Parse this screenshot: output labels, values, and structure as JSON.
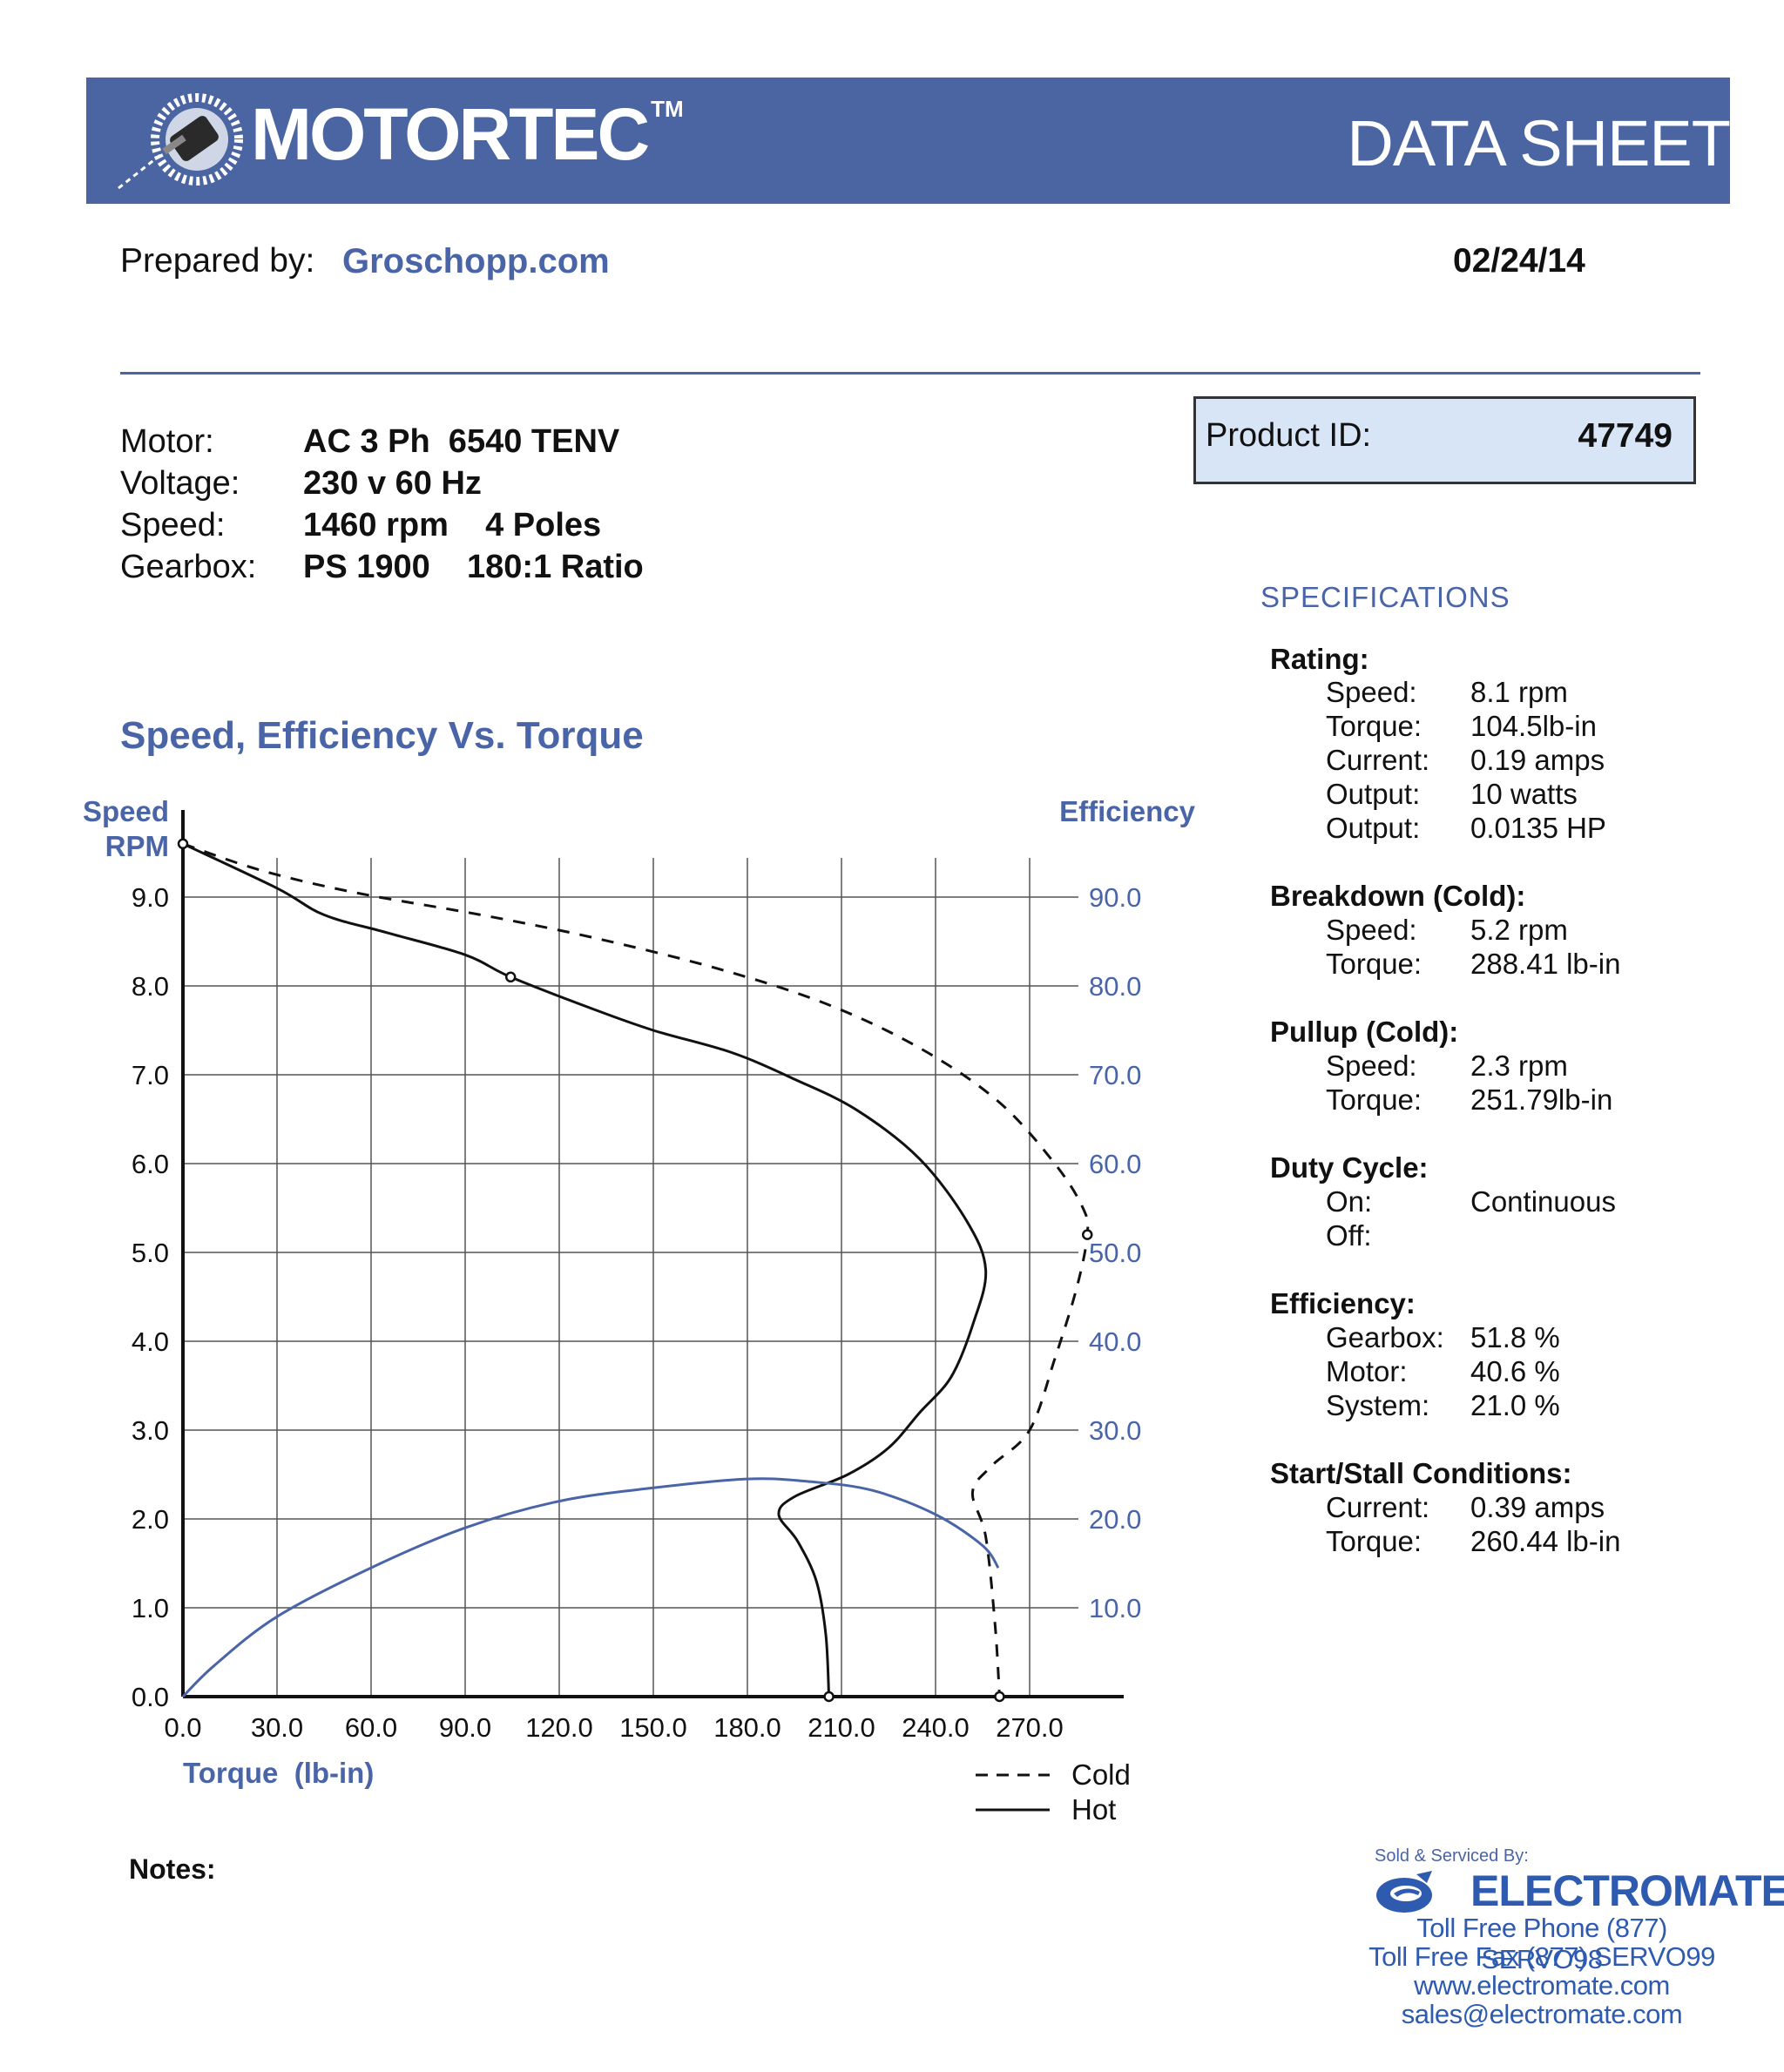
{
  "header": {
    "brand": "MOTORTEC",
    "trademark": "TM",
    "title": "DATA SHEET",
    "brand_color": "#4b65a3"
  },
  "prepared": {
    "label": "Prepared by:",
    "name": "Groschopp.com",
    "date": "02/24/14"
  },
  "motor": [
    {
      "label": "Motor:",
      "value": "AC 3 Ph  6540 TENV"
    },
    {
      "label": "Voltage:",
      "value": "230 v 60 Hz"
    },
    {
      "label": "Speed:",
      "value": "1460 rpm    4 Poles"
    },
    {
      "label": "Gearbox:",
      "value": "PS 1900    180:1 Ratio"
    }
  ],
  "product": {
    "label": "Product ID:",
    "value": "47749"
  },
  "specs": {
    "title": "SPECIFICATIONS",
    "groups": [
      {
        "heading": "Rating:",
        "rows": [
          {
            "k": "Speed:",
            "v": "8.1 rpm"
          },
          {
            "k": "Torque:",
            "v": "104.5lb-in"
          },
          {
            "k": "Current:",
            "v": "0.19 amps"
          },
          {
            "k": "Output:",
            "v": "10 watts"
          },
          {
            "k": "Output:",
            "v": "0.0135 HP"
          }
        ]
      },
      {
        "heading": "Breakdown (Cold):",
        "rows": [
          {
            "k": "Speed:",
            "v": "5.2 rpm"
          },
          {
            "k": "Torque:",
            "v": "288.41 lb-in"
          }
        ]
      },
      {
        "heading": "Pullup (Cold):",
        "rows": [
          {
            "k": "Speed:",
            "v": "2.3 rpm"
          },
          {
            "k": "Torque:",
            "v": "251.79lb-in"
          }
        ]
      },
      {
        "heading": "Duty Cycle:",
        "rows": [
          {
            "k": "On:",
            "v": "Continuous"
          },
          {
            "k": "Off:",
            "v": ""
          }
        ]
      },
      {
        "heading": "Efficiency:",
        "rows": [
          {
            "k": "Gearbox:",
            "v": "51.8 %"
          },
          {
            "k": "Motor:",
            "v": "40.6 %"
          },
          {
            "k": "System:",
            "v": "21.0 %"
          }
        ]
      },
      {
        "heading": "Start/Stall Conditions:",
        "rows": [
          {
            "k": "Current:",
            "v": "0.39 amps"
          },
          {
            "k": "Torque:",
            "v": "260.44 lb-in"
          }
        ]
      }
    ]
  },
  "chart_title": "Speed, Efficiency Vs. Torque",
  "chart_data": {
    "type": "line",
    "title": "Speed, Efficiency Vs. Torque",
    "xlabel": "Torque  (lb-in)",
    "ylabel": "Speed RPM",
    "y2label": "Efficiency",
    "xlim": [
      0,
      300
    ],
    "ylim": [
      0,
      9.6
    ],
    "y2lim": [
      0,
      96
    ],
    "x_ticks": [
      "0.0",
      "30.0",
      "60.0",
      "90.0",
      "120.0",
      "150.0",
      "180.0",
      "210.0",
      "240.0",
      "270.0"
    ],
    "y_ticks": [
      "0.0",
      "1.0",
      "2.0",
      "3.0",
      "4.0",
      "5.0",
      "6.0",
      "7.0",
      "8.0",
      "9.0"
    ],
    "y2_ticks": [
      "10.0",
      "20.0",
      "30.0",
      "40.0",
      "50.0",
      "60.0",
      "70.0",
      "80.0",
      "90.0"
    ],
    "series": [
      {
        "name": "Cold",
        "style": "dashed",
        "color": "#111111",
        "axis": "speed",
        "points": [
          [
            0,
            9.6
          ],
          [
            25,
            9.3
          ],
          [
            55,
            9.05
          ],
          [
            95,
            8.8
          ],
          [
            130,
            8.55
          ],
          [
            170,
            8.2
          ],
          [
            205,
            7.8
          ],
          [
            235,
            7.3
          ],
          [
            260,
            6.7
          ],
          [
            278,
            6.0
          ],
          [
            287,
            5.5
          ],
          [
            288.4,
            5.2
          ],
          [
            285,
            4.6
          ],
          [
            278,
            3.8
          ],
          [
            270,
            3.0
          ],
          [
            258,
            2.6
          ],
          [
            251.8,
            2.3
          ],
          [
            256,
            1.8
          ],
          [
            259,
            0.8
          ],
          [
            260.4,
            0.0
          ]
        ]
      },
      {
        "name": "Hot",
        "style": "solid",
        "color": "#111111",
        "axis": "speed",
        "points": [
          [
            0,
            9.6
          ],
          [
            30,
            9.1
          ],
          [
            45,
            8.8
          ],
          [
            65,
            8.6
          ],
          [
            90,
            8.35
          ],
          [
            104.5,
            8.1
          ],
          [
            130,
            7.75
          ],
          [
            150,
            7.5
          ],
          [
            175,
            7.25
          ],
          [
            195,
            6.95
          ],
          [
            215,
            6.6
          ],
          [
            235,
            6.05
          ],
          [
            250,
            5.35
          ],
          [
            256,
            4.8
          ],
          [
            252,
            4.2
          ],
          [
            245,
            3.6
          ],
          [
            235,
            3.2
          ],
          [
            225,
            2.8
          ],
          [
            212,
            2.5
          ],
          [
            195,
            2.25
          ],
          [
            190,
            2.05
          ],
          [
            196,
            1.75
          ],
          [
            202,
            1.3
          ],
          [
            205,
            0.7
          ],
          [
            206,
            0.0
          ]
        ]
      },
      {
        "name": "Efficiency",
        "style": "solid",
        "color": "#4a64a8",
        "axis": "efficiency",
        "points": [
          [
            0,
            0
          ],
          [
            10,
            3.5
          ],
          [
            30,
            9
          ],
          [
            60,
            14.5
          ],
          [
            90,
            19
          ],
          [
            120,
            22
          ],
          [
            150,
            23.5
          ],
          [
            180,
            24.5
          ],
          [
            200,
            24.2
          ],
          [
            220,
            23.2
          ],
          [
            240,
            20.5
          ],
          [
            255,
            17
          ],
          [
            260,
            14.5
          ]
        ]
      }
    ],
    "markers": [
      {
        "name": "start-hot",
        "x": 0,
        "y": 9.6
      },
      {
        "name": "rated-point",
        "x": 104.5,
        "y": 8.1
      },
      {
        "name": "breakdown-cold",
        "x": 288.4,
        "y": 5.2
      },
      {
        "name": "stall-hot",
        "x": 206,
        "y": 0
      },
      {
        "name": "stall-cold",
        "x": 260.4,
        "y": 0
      }
    ],
    "legend": [
      {
        "name": "Cold",
        "style": "dashed"
      },
      {
        "name": "Hot",
        "style": "solid"
      }
    ],
    "legend_position": "bottom-right",
    "grid": true,
    "y_axis_title_line1": "Speed",
    "y_axis_title_line2": "RPM"
  },
  "notes_label": "Notes:",
  "seller": {
    "sold_by": "Sold & Serviced By:",
    "name": "ELECTROMATE",
    "phone": "Toll Free Phone  (877) SERVO98",
    "fax": "Toll Free Fax  (877) SERVO99",
    "web": "www.electromate.com",
    "email": "sales@electromate.com"
  }
}
